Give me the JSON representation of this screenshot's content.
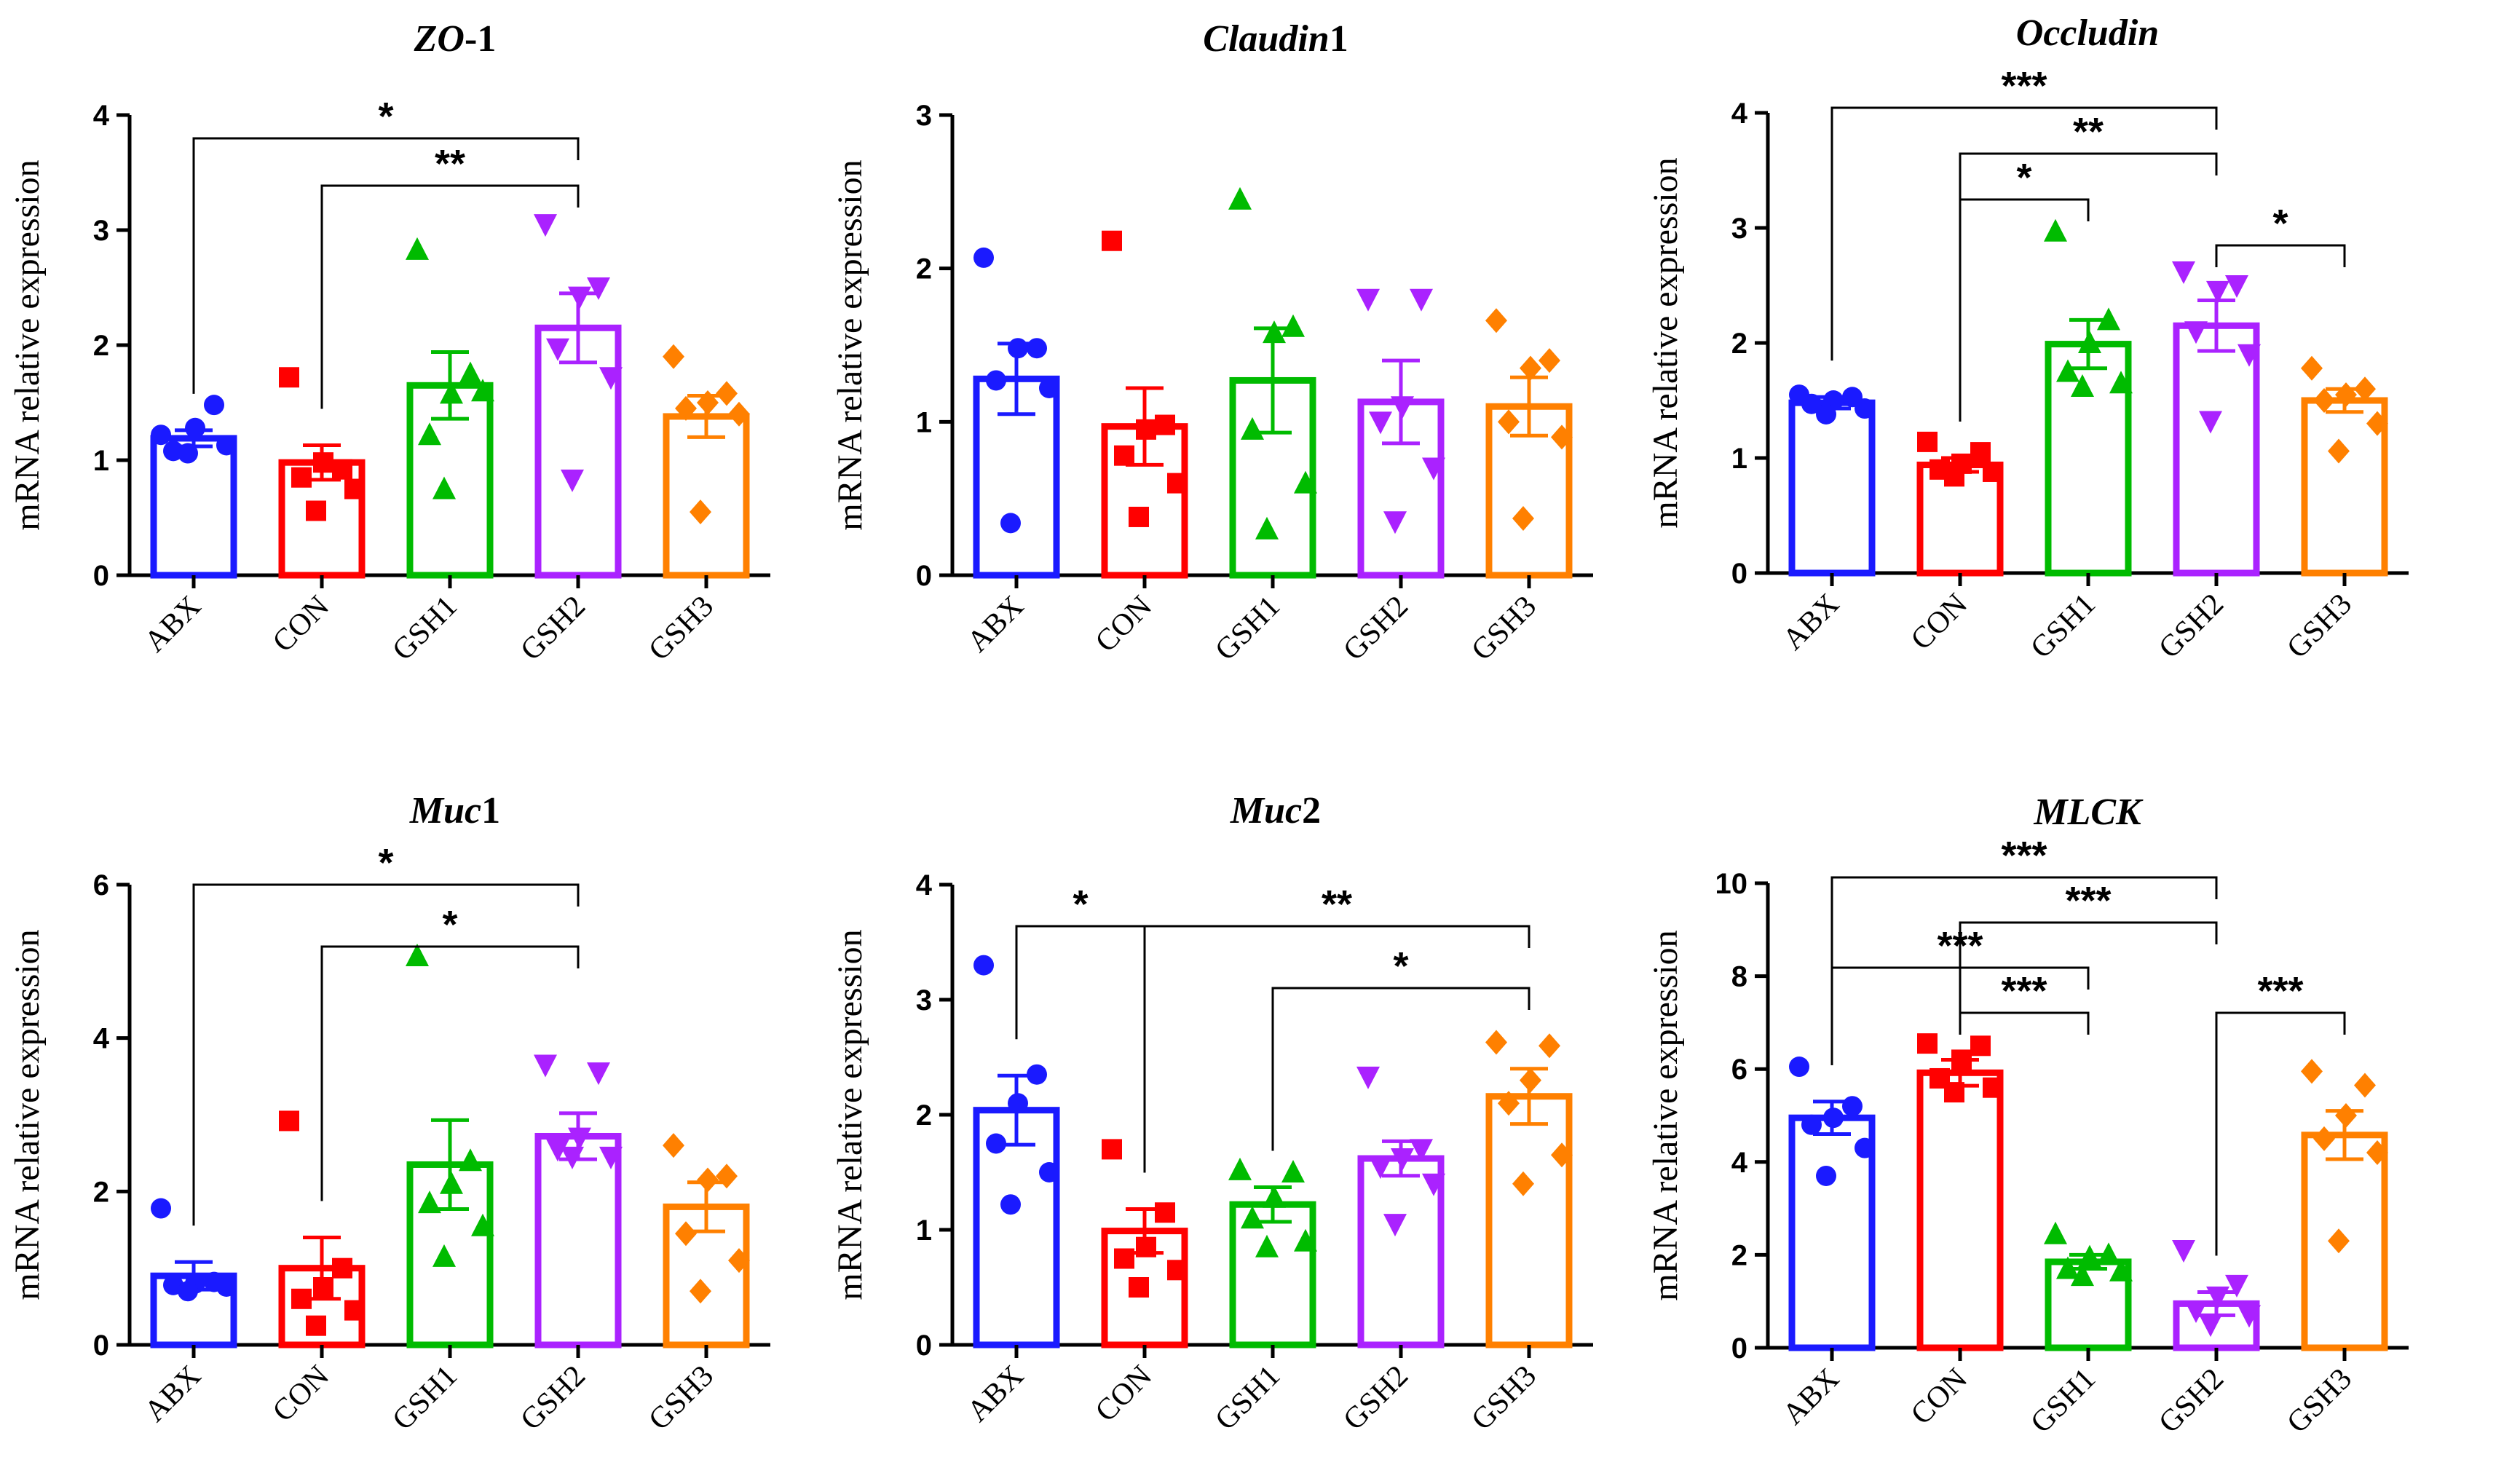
{
  "chart_data": [
    {
      "type": "bar",
      "title": "ZO-1",
      "title_parts": [
        {
          "text": "ZO",
          "italic": true
        },
        {
          "text": "-1",
          "italic": false
        }
      ],
      "ylabel": "mRNA relative expression",
      "ylim": [
        0,
        4
      ],
      "yticks": [
        "0",
        "1",
        "2",
        "3",
        "4"
      ],
      "categories": [
        "ABX",
        "CON",
        "GSH1",
        "GSH2",
        "GSH3"
      ],
      "colors": [
        "#1a1aff",
        "#ff0000",
        "#00bb00",
        "#aa22ff",
        "#ff8000"
      ],
      "markers": [
        "circle",
        "square",
        "triangle-up",
        "triangle-down",
        "diamond"
      ],
      "values": [
        1.19,
        0.98,
        1.65,
        2.15,
        1.38
      ],
      "errors": [
        0.07,
        0.15,
        0.29,
        0.3,
        0.18
      ],
      "points": [
        [
          1.22,
          1.48,
          1.28,
          1.08,
          1.13,
          1.06
        ],
        [
          1.72,
          0.92,
          0.98,
          0.85,
          0.75,
          0.56
        ],
        [
          2.83,
          1.75,
          1.58,
          1.22,
          1.6,
          0.75
        ],
        [
          3.05,
          2.5,
          2.42,
          1.97,
          1.72,
          0.83
        ],
        [
          1.9,
          1.58,
          1.5,
          1.45,
          1.4,
          0.55
        ]
      ],
      "significance": [
        {
          "from": 0,
          "to": 3,
          "label": "*",
          "level": 0,
          "stem": "long"
        },
        {
          "from": 1,
          "to": 3,
          "label": "**",
          "level": 1,
          "stem": "long"
        }
      ]
    },
    {
      "type": "bar",
      "title": "Claudin1",
      "title_parts": [
        {
          "text": "Claudin",
          "italic": true
        },
        {
          "text": "1",
          "italic": false
        }
      ],
      "ylabel": "mRNA relative expression",
      "ylim": [
        0,
        3
      ],
      "yticks": [
        "0",
        "1",
        "2",
        "3"
      ],
      "categories": [
        "ABX",
        "CON",
        "GSH1",
        "GSH2",
        "GSH3"
      ],
      "colors": [
        "#1a1aff",
        "#ff0000",
        "#00bb00",
        "#aa22ff",
        "#ff8000"
      ],
      "markers": [
        "circle",
        "square",
        "triangle-up",
        "triangle-down",
        "diamond"
      ],
      "values": [
        1.28,
        0.97,
        1.27,
        1.13,
        1.1
      ],
      "errors": [
        0.23,
        0.25,
        0.34,
        0.27,
        0.19
      ],
      "points": [
        [
          2.07,
          1.48,
          1.48,
          1.27,
          1.22,
          0.34
        ],
        [
          2.18,
          0.98,
          0.95,
          0.78,
          0.6,
          0.38
        ],
        [
          2.45,
          1.62,
          1.58,
          0.95,
          0.6,
          0.3
        ],
        [
          1.8,
          1.8,
          1.1,
          1.0,
          0.7,
          0.35
        ],
        [
          1.66,
          1.4,
          1.35,
          1.0,
          0.9,
          0.37
        ]
      ],
      "significance": []
    },
    {
      "type": "bar",
      "title": "Occludin",
      "title_parts": [
        {
          "text": "Occludin",
          "italic": true
        }
      ],
      "ylabel": "mRNA relative expression",
      "ylim": [
        0,
        4
      ],
      "yticks": [
        "0",
        "1",
        "2",
        "3",
        "4"
      ],
      "categories": [
        "ABX",
        "CON",
        "GSH1",
        "GSH2",
        "GSH3"
      ],
      "colors": [
        "#1a1aff",
        "#ff0000",
        "#00bb00",
        "#aa22ff",
        "#ff8000"
      ],
      "markers": [
        "circle",
        "square",
        "triangle-up",
        "triangle-down",
        "diamond"
      ],
      "values": [
        1.48,
        0.94,
        1.99,
        2.15,
        1.5
      ],
      "errors": [
        0.05,
        0.06,
        0.21,
        0.22,
        0.1
      ],
      "points": [
        [
          1.55,
          1.53,
          1.5,
          1.47,
          1.43,
          1.38
        ],
        [
          1.14,
          1.05,
          0.95,
          0.9,
          0.88,
          0.84
        ],
        [
          2.97,
          2.2,
          2.0,
          1.75,
          1.65,
          1.62
        ],
        [
          2.62,
          2.5,
          2.45,
          2.1,
          1.9,
          1.32
        ],
        [
          1.78,
          1.6,
          1.55,
          1.5,
          1.3,
          1.06
        ]
      ],
      "significance": [
        {
          "from": 0,
          "to": 3,
          "label": "***",
          "level": 0,
          "stem": "long"
        },
        {
          "from": 1,
          "to": 3,
          "label": "**",
          "level": 1,
          "stem": "long"
        },
        {
          "from": 1,
          "to": 2,
          "label": "*",
          "level": 2,
          "stem": "long"
        },
        {
          "from": 3,
          "to": 4,
          "label": "*",
          "level": 3,
          "stem": "long"
        }
      ]
    },
    {
      "type": "bar",
      "title": "Muc1",
      "title_parts": [
        {
          "text": "Muc",
          "italic": true
        },
        {
          "text": "1",
          "italic": false
        }
      ],
      "ylabel": "mRNA relative expression",
      "ylim": [
        0,
        6
      ],
      "yticks": [
        "0",
        "2",
        "4",
        "6"
      ],
      "categories": [
        "ABX",
        "CON",
        "GSH1",
        "GSH2",
        "GSH3"
      ],
      "colors": [
        "#1a1aff",
        "#ff0000",
        "#00bb00",
        "#aa22ff",
        "#ff8000"
      ],
      "markers": [
        "circle",
        "square",
        "triangle-up",
        "triangle-down",
        "diamond"
      ],
      "values": [
        0.9,
        1.0,
        2.35,
        2.72,
        1.8
      ],
      "errors": [
        0.18,
        0.4,
        0.58,
        0.3,
        0.32
      ],
      "points": [
        [
          1.78,
          0.82,
          0.8,
          0.78,
          0.76,
          0.7
        ],
        [
          2.92,
          1.0,
          0.75,
          0.6,
          0.45,
          0.25
        ],
        [
          5.07,
          2.4,
          2.1,
          1.85,
          1.55,
          1.15
        ],
        [
          3.65,
          3.55,
          2.7,
          2.55,
          2.45,
          2.45
        ],
        [
          2.6,
          2.2,
          2.15,
          1.45,
          1.1,
          0.7
        ]
      ],
      "significance": [
        {
          "from": 0,
          "to": 3,
          "label": "*",
          "level": 0,
          "stem": "long"
        },
        {
          "from": 1,
          "to": 3,
          "label": "*",
          "level": 1,
          "stem": "long"
        }
      ]
    },
    {
      "type": "bar",
      "title": "Muc2",
      "title_parts": [
        {
          "text": "Muc",
          "italic": true
        },
        {
          "text": "2",
          "italic": false
        }
      ],
      "ylabel": "mRNA relative expression",
      "ylim": [
        0,
        4
      ],
      "yticks": [
        "0",
        "1",
        "2",
        "3",
        "4"
      ],
      "categories": [
        "ABX",
        "CON",
        "GSH1",
        "GSH2",
        "GSH3"
      ],
      "colors": [
        "#1a1aff",
        "#ff0000",
        "#00bb00",
        "#aa22ff",
        "#ff8000"
      ],
      "markers": [
        "circle",
        "square",
        "triangle-up",
        "triangle-down",
        "diamond"
      ],
      "values": [
        2.04,
        0.99,
        1.22,
        1.62,
        2.16
      ],
      "errors": [
        0.3,
        0.19,
        0.15,
        0.15,
        0.24
      ],
      "points": [
        [
          3.3,
          2.35,
          2.1,
          1.75,
          1.5,
          1.22
        ],
        [
          1.7,
          1.15,
          0.85,
          0.75,
          0.65,
          0.5
        ],
        [
          1.52,
          1.5,
          1.28,
          1.1,
          0.9,
          0.85
        ],
        [
          2.33,
          1.7,
          1.62,
          1.55,
          1.4,
          1.05
        ],
        [
          2.63,
          2.6,
          2.3,
          2.1,
          1.65,
          1.4
        ]
      ],
      "significance": [
        {
          "from": 0,
          "to": 1,
          "label": "*",
          "level": 0,
          "stem": "long"
        },
        {
          "from": 1,
          "to": 4,
          "label": "**",
          "level": 0,
          "stem": "long"
        },
        {
          "from": 2,
          "to": 4,
          "label": "*",
          "level": 1,
          "stem": "long"
        }
      ]
    },
    {
      "type": "bar",
      "title": "MLCK",
      "title_parts": [
        {
          "text": "MLCK",
          "italic": true
        }
      ],
      "ylabel": "mRNA relative expression",
      "ylim": [
        0,
        10
      ],
      "yticks": [
        "0",
        "2",
        "4",
        "6",
        "8",
        "10"
      ],
      "categories": [
        "ABX",
        "CON",
        "GSH1",
        "GSH2",
        "GSH3"
      ],
      "colors": [
        "#1a1aff",
        "#ff0000",
        "#00bb00",
        "#aa22ff",
        "#ff8000"
      ],
      "markers": [
        "circle",
        "square",
        "triangle-up",
        "triangle-down",
        "diamond"
      ],
      "values": [
        4.95,
        5.92,
        1.85,
        0.95,
        4.58
      ],
      "errors": [
        0.35,
        0.28,
        0.15,
        0.25,
        0.52
      ],
      "points": [
        [
          6.05,
          5.2,
          4.95,
          4.8,
          4.3,
          3.7
        ],
        [
          6.55,
          6.5,
          6.2,
          5.8,
          5.6,
          5.5
        ],
        [
          2.45,
          2.0,
          1.95,
          1.7,
          1.65,
          1.55
        ],
        [
          2.1,
          1.35,
          1.1,
          0.8,
          0.7,
          0.5
        ],
        [
          5.95,
          5.65,
          5.0,
          4.5,
          4.2,
          2.3
        ]
      ],
      "significance": [
        {
          "from": 0,
          "to": 3,
          "label": "***",
          "level": 0,
          "stem": "long"
        },
        {
          "from": 1,
          "to": 3,
          "label": "***",
          "level": 1,
          "stem": "long"
        },
        {
          "from": 0,
          "to": 2,
          "label": "***",
          "level": 2,
          "stem": "long"
        },
        {
          "from": 1,
          "to": 2,
          "label": "***",
          "level": 3,
          "stem": "long"
        },
        {
          "from": 3,
          "to": 4,
          "label": "***",
          "level": 3,
          "stem": "long"
        }
      ]
    }
  ]
}
